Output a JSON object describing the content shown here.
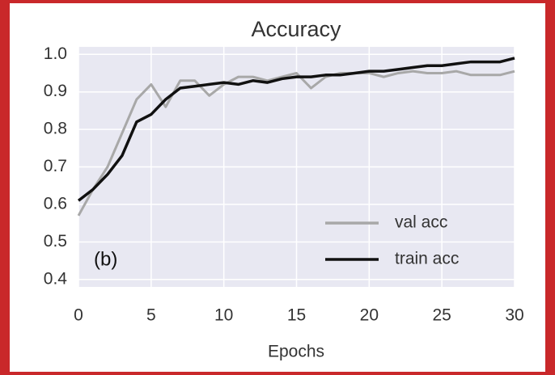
{
  "chart_data": {
    "type": "line",
    "title": "Accuracy",
    "xlabel": "Epochs",
    "annotation": "(b)",
    "x": [
      0,
      1,
      2,
      3,
      4,
      5,
      6,
      7,
      8,
      9,
      10,
      11,
      12,
      13,
      14,
      15,
      16,
      17,
      18,
      19,
      20,
      21,
      22,
      23,
      24,
      25,
      26,
      27,
      28,
      29,
      30
    ],
    "series": [
      {
        "name": "val acc",
        "color": "#a8a8a8",
        "values": [
          0.57,
          0.64,
          0.7,
          0.79,
          0.88,
          0.92,
          0.86,
          0.93,
          0.93,
          0.89,
          0.92,
          0.94,
          0.94,
          0.93,
          0.94,
          0.95,
          0.91,
          0.94,
          0.95,
          0.95,
          0.95,
          0.94,
          0.95,
          0.955,
          0.95,
          0.95,
          0.955,
          0.945,
          0.945,
          0.945,
          0.955
        ]
      },
      {
        "name": "train acc",
        "color": "#111111",
        "values": [
          0.61,
          0.64,
          0.68,
          0.73,
          0.82,
          0.84,
          0.88,
          0.91,
          0.915,
          0.92,
          0.925,
          0.92,
          0.93,
          0.925,
          0.935,
          0.94,
          0.94,
          0.945,
          0.945,
          0.95,
          0.955,
          0.955,
          0.96,
          0.965,
          0.97,
          0.97,
          0.975,
          0.98,
          0.98,
          0.98,
          0.99
        ]
      }
    ],
    "xlim": [
      0,
      30
    ],
    "xticks": [
      0,
      5,
      10,
      15,
      20,
      25,
      30
    ],
    "ylim": [
      0.38,
      1.02
    ],
    "yticks": [
      0.4,
      0.5,
      0.6,
      0.7,
      0.8,
      0.9,
      {
        "value": 1.0,
        "label": "1.0"
      }
    ],
    "grid": true,
    "legend": "lower right"
  }
}
